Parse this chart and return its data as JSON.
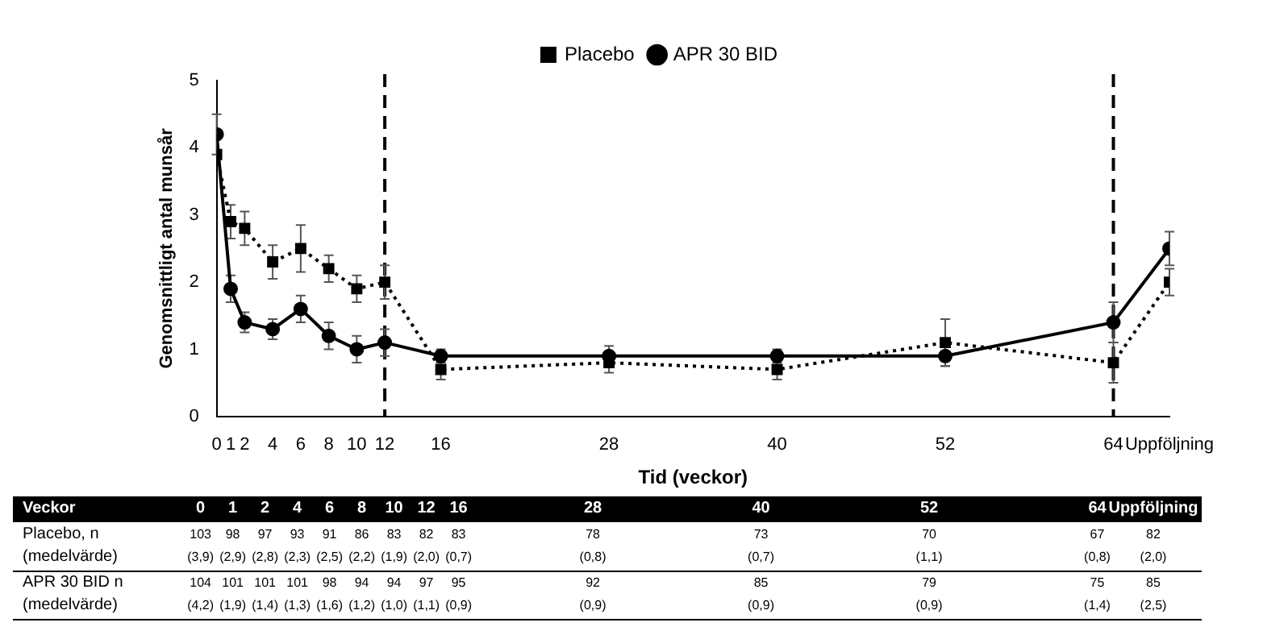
{
  "chart_data": {
    "type": "line",
    "xlabel": "Tid (veckor)",
    "ylabel": "Genomsnittligt antal munsår",
    "x": [
      0,
      1,
      2,
      4,
      6,
      8,
      10,
      12,
      16,
      28,
      40,
      52,
      64,
      68
    ],
    "xlim": [
      0,
      68
    ],
    "xticks": [
      0,
      1,
      2,
      4,
      6,
      8,
      10,
      12,
      16,
      28,
      40,
      52,
      64,
      {
        "value": 68,
        "label": "Uppföljning"
      }
    ],
    "ylim": [
      0,
      5
    ],
    "yticks": [
      0,
      1,
      2,
      3,
      4,
      5
    ],
    "grid": false,
    "legend": "top",
    "series": [
      {
        "name": "Placebo",
        "color": "#000000",
        "marker": "square",
        "line_style": "dotted",
        "values": [
          3.9,
          2.9,
          2.8,
          2.3,
          2.5,
          2.2,
          1.9,
          2.0,
          0.7,
          0.8,
          0.7,
          1.1,
          0.8,
          2.0
        ],
        "errors": [
          null,
          0.25,
          0.25,
          0.25,
          0.35,
          0.2,
          0.2,
          0.25,
          0.15,
          0.15,
          0.15,
          0.35,
          0.3,
          0.2
        ]
      },
      {
        "name": "APR 30 BID",
        "color": "#000000",
        "marker": "circle",
        "line_style": "solid",
        "values": [
          4.2,
          1.9,
          1.4,
          1.3,
          1.6,
          1.2,
          1.0,
          1.1,
          0.9,
          0.9,
          0.9,
          0.9,
          1.4,
          2.5
        ],
        "errors": [
          0.3,
          0.2,
          0.15,
          0.15,
          0.2,
          0.2,
          0.2,
          0.2,
          0.1,
          0.15,
          0.1,
          0.15,
          0.3,
          0.25
        ]
      }
    ],
    "ref_lines": [
      {
        "axis": "x",
        "value": 12,
        "color": "#000000",
        "line_style": "dashed"
      },
      {
        "axis": "x",
        "value": 64,
        "color": "#000000",
        "line_style": "dashed"
      }
    ],
    "annotations": [
      "Veckor",
      "0",
      "1",
      "2",
      "4",
      "6",
      "8",
      "10",
      "12",
      "16",
      "28",
      "40",
      "52",
      "64",
      "Uppföljning",
      "Placebo, n",
      "(medelvärde)",
      "APR 30 BID n",
      "(medelvärde)",
      "103",
      "98",
      "97",
      "93",
      "91",
      "86",
      "83",
      "82",
      "83",
      "78",
      "73",
      "70",
      "67",
      "82",
      "(3,9)",
      "(2,9)",
      "(2,8)",
      "(2,3)",
      "(2,5)",
      "(2,2)",
      "(1,9)",
      "(2,0)",
      "(0,7)",
      "(0,8)",
      "(0,7)",
      "(1,1)",
      "(0,8)",
      "(2,0)",
      "104",
      "101",
      "101",
      "101",
      "98",
      "94",
      "94",
      "97",
      "95",
      "92",
      "85",
      "79",
      "75",
      "85",
      "(4,2)",
      "(1,9)",
      "(1,4)",
      "(1,3)",
      "(1,6)",
      "(1,2)",
      "(1,0)",
      "(1,1)",
      "(0,9)",
      "(0,9)",
      "(0,9)",
      "(0,9)",
      "(1,4)",
      "(2,5)"
    ]
  }
}
